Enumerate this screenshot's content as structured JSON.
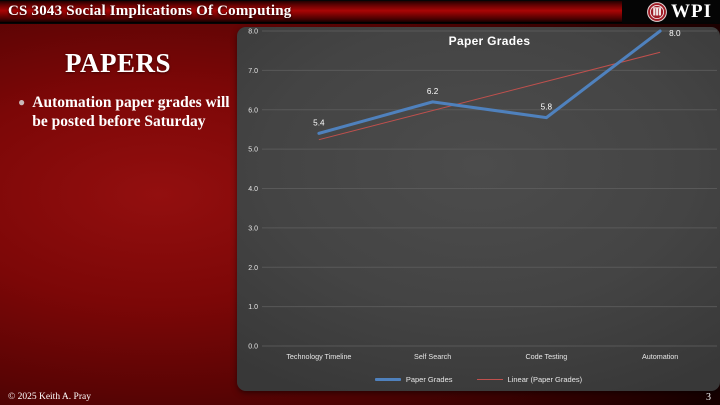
{
  "header": {
    "title": "CS 3043 Social Implications Of Computing",
    "logo_text": "WPI"
  },
  "slide": {
    "title": "PAPERS",
    "bullet": "Automation paper grades will be posted before Saturday"
  },
  "chart_data": {
    "type": "line",
    "title": "Paper Grades",
    "categories": [
      "Technology Timeline",
      "Self Search",
      "Code Testing",
      "Automation"
    ],
    "series": [
      {
        "name": "Paper Grades",
        "values": [
          5.4,
          6.2,
          5.8,
          8.0
        ],
        "labels": [
          "5.4",
          "6.2",
          "5.8",
          "8.0"
        ],
        "color": "#4f81bd"
      },
      {
        "name": "Linear (Paper Grades)",
        "kind": "trendline",
        "endpoints": [
          5.24,
          7.46
        ],
        "color": "#c0504d"
      }
    ],
    "ylim": [
      0,
      8
    ],
    "ytick_step": 1,
    "ytick_labels": [
      "0.0",
      "1.0",
      "2.0",
      "3.0",
      "4.0",
      "5.0",
      "6.0",
      "7.0",
      "8.0"
    ],
    "grid": true,
    "legend_position": "bottom"
  },
  "footer": {
    "copyright": "© 2025 Keith A. Pray",
    "page": "3"
  },
  "colors": {
    "series_blue": "#4f81bd",
    "trend_red": "#c0504d",
    "slide_red": "#8c0c0c",
    "chart_gray": "#454545",
    "gridline": "#5d5d5d",
    "tick_text": "#e6e6e6"
  }
}
